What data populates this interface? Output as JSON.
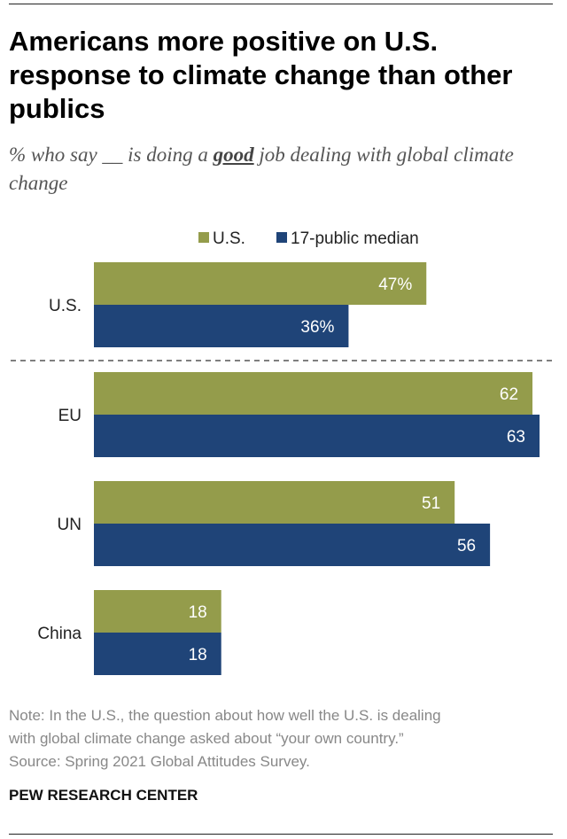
{
  "title": "Americans more positive on U.S. response to climate change than other publics",
  "subtitle": {
    "before": "% who say __ is doing a ",
    "emphasis": "good",
    "after": " job dealing with global climate change"
  },
  "note": {
    "line1": "Note: In the U.S., the question about how well the U.S. is dealing",
    "line2": "with global climate change asked about “your own country.”",
    "line3": "Source: Spring 2021 Global Attitudes Survey."
  },
  "brand": "PEW RESEARCH CENTER",
  "chart_data": {
    "type": "bar",
    "orientation": "horizontal",
    "categories": [
      "U.S.",
      "EU",
      "UN",
      "China"
    ],
    "series": [
      {
        "name": "U.S.",
        "color": "#949c4b",
        "values": [
          47,
          62,
          51,
          18
        ],
        "labels": [
          "47%",
          "62",
          "51",
          "18"
        ]
      },
      {
        "name": "17-public median",
        "color": "#1f4478",
        "values": [
          36,
          63,
          56,
          18
        ],
        "labels": [
          "36%",
          "63",
          "56",
          "18"
        ]
      }
    ],
    "xlim": [
      0,
      63
    ],
    "legend_position": "top",
    "separator_after": "U.S."
  }
}
